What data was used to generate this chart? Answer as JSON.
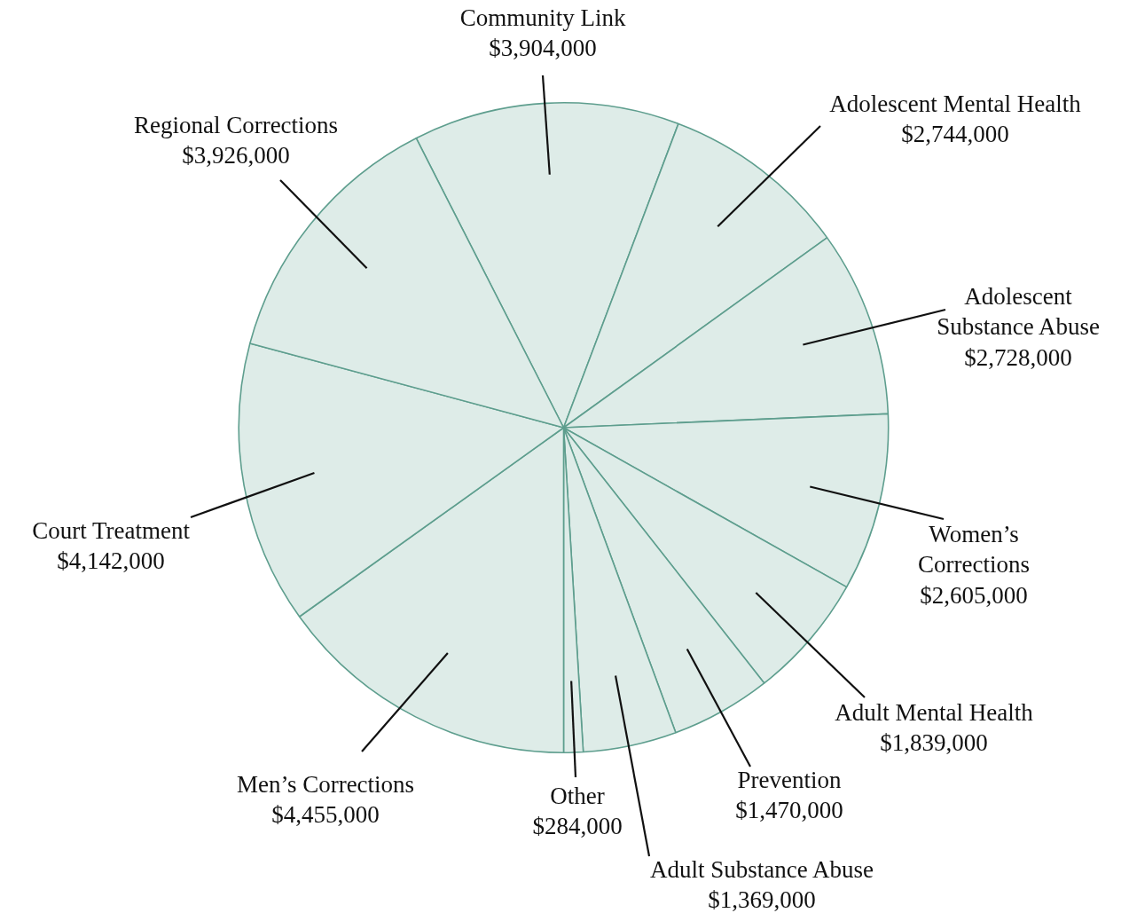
{
  "chart_data": {
    "type": "pie",
    "categories": [
      "Community Link",
      "Adolescent Mental Health",
      "Adolescent Substance Abuse",
      "Women’s Corrections",
      "Adult Mental Health",
      "Prevention",
      "Adult Substance Abuse",
      "Other",
      "Men’s Corrections",
      "Court Treatment",
      "Regional Corrections"
    ],
    "values": [
      3904000,
      2744000,
      2728000,
      2605000,
      1839000,
      1470000,
      1369000,
      284000,
      4455000,
      4142000,
      3926000
    ],
    "value_labels": [
      "$3,904,000",
      "$2,744,000",
      "$2,728,000",
      "$2,605,000",
      "$1,839,000",
      "$1,470,000",
      "$1,369,000",
      "$284,000",
      "$4,455,000",
      "$4,142,000",
      "$3,926,000"
    ],
    "colors": [
      "#deece8",
      "#deece8",
      "#deece8",
      "#deece8",
      "#deece8",
      "#deece8",
      "#deece8",
      "#deece8",
      "#deece8",
      "#deece8",
      "#deece8"
    ]
  }
}
